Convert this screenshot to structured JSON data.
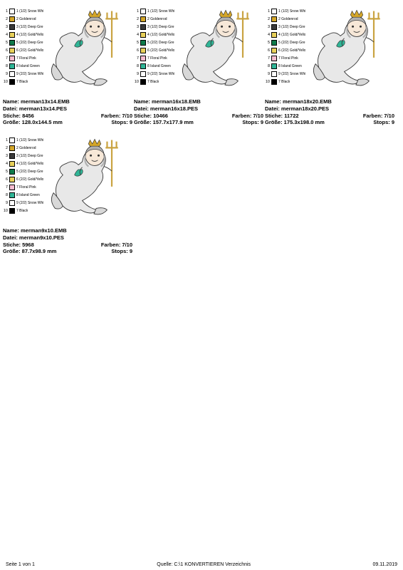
{
  "legend": [
    {
      "idx": "1",
      "hex": "#ffffff",
      "label": "1 (1/2) Snow Whi"
    },
    {
      "idx": "2",
      "hex": "#d4a628",
      "label": "2 Goldenrod"
    },
    {
      "idx": "3",
      "hex": "#3a3a3a",
      "label": "3 (1/2) Deep Gre"
    },
    {
      "idx": "4",
      "hex": "#e8d05a",
      "label": "4 (1/2) Gold/Yello"
    },
    {
      "idx": "5",
      "hex": "#0f7a4a",
      "label": "5 (2/2) Deep Gre"
    },
    {
      "idx": "6",
      "hex": "#e8d05a",
      "label": "6 (2/2) Gold/Yello"
    },
    {
      "idx": "7",
      "hex": "#f7bcd0",
      "label": "7 Floral Pink"
    },
    {
      "idx": "8",
      "hex": "#2fb596",
      "label": "8 Island Green"
    },
    {
      "idx": "9",
      "hex": "#ffffff",
      "label": "9 (2/2) Snow Whi"
    },
    {
      "idx": "10",
      "hex": "#000000",
      "label": "7 Black"
    }
  ],
  "items": [
    {
      "name": "merman13x14.EMB",
      "datei": "merman13x14.PES",
      "stiche": "8456",
      "farben": "7/10",
      "groesse": "128.0x144.5 mm",
      "stops": "9"
    },
    {
      "name": "merman16x18.EMB",
      "datei": "merman16x18.PES",
      "stiche": "10466",
      "farben": "7/10",
      "groesse": "157.7x177.9 mm",
      "stops": "9"
    },
    {
      "name": "merman18x20.EMB",
      "datei": "merman18x20.PES",
      "stiche": "11722",
      "farben": "7/10",
      "groesse": "175.3x198.0 mm",
      "stops": "9"
    },
    {
      "name": "merman9x10.EMB",
      "datei": "merman9x10.PES",
      "stiche": "5968",
      "farben": "7/10",
      "groesse": "87.7x98.9 mm",
      "stops": "9"
    }
  ],
  "labels": {
    "name": "Name:",
    "datei": "Datei:",
    "stiche": "Stiche:",
    "farben": "Farben:",
    "groesse": "Größe:",
    "stops": "Stops:"
  },
  "footer": {
    "left": "Seite 1 von 1",
    "center": "Quelle: C:\\1 KONVERTIEREN Verzeichnis",
    "right": "09.11.2019"
  },
  "art_colors": {
    "crown": "#d4a628",
    "trident": "#c9a340",
    "skin": "#f7e8d8",
    "hair": "#b0b0b0",
    "tail_body": "#e8e8e8",
    "tail_fin": "#d8d8d8",
    "belt": "#2fb596",
    "outline": "#333333"
  }
}
